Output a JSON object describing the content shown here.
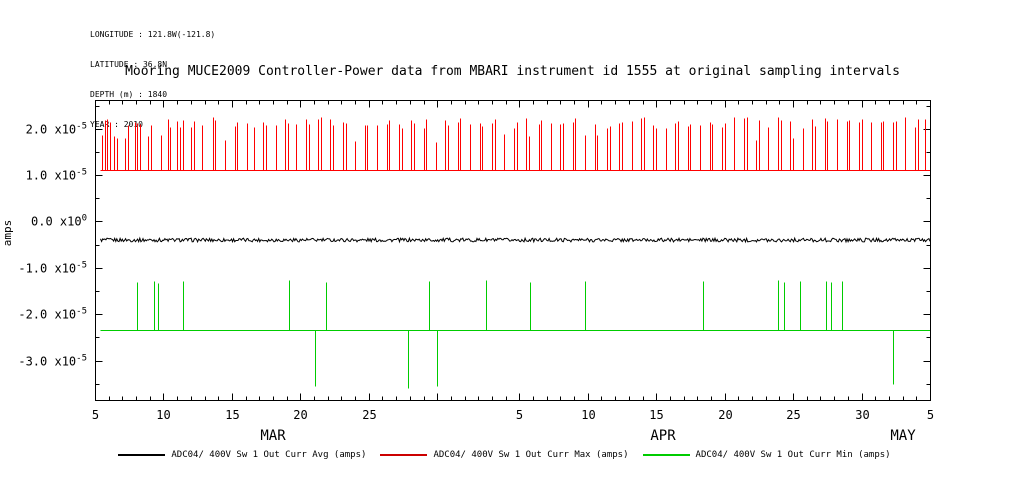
{
  "header": {
    "lines": [
      "LONGITUDE : 121.8W(-121.8)",
      "LATITUDE : 36.8N",
      "DEPTH (m) : 1840",
      "YEAR : 2010"
    ]
  },
  "chart_data": {
    "type": "line",
    "title": "Mooring MUCE2009 Controller-Power data from MBARI instrument id 1555 at original sampling intervals",
    "ylabel": "amps",
    "x_axis": {
      "range_days": [
        0,
        61
      ],
      "start_date": "MAR 5",
      "end_date": "MAY 5",
      "minor_tick_interval": 1,
      "ticks": [
        {
          "day": 0,
          "label": "5"
        },
        {
          "day": 5,
          "label": "10"
        },
        {
          "day": 10,
          "label": "15"
        },
        {
          "day": 15,
          "label": "20"
        },
        {
          "day": 20,
          "label": "25"
        },
        {
          "day": 25,
          "label": ""
        },
        {
          "day": 31,
          "label": "5"
        },
        {
          "day": 36,
          "label": "10"
        },
        {
          "day": 41,
          "label": "15"
        },
        {
          "day": 46,
          "label": "20"
        },
        {
          "day": 51,
          "label": "25"
        },
        {
          "day": 56,
          "label": "30"
        },
        {
          "day": 61,
          "label": "5"
        }
      ],
      "month_labels": [
        {
          "day": 13,
          "label": "MAR"
        },
        {
          "day": 41.5,
          "label": "APR"
        },
        {
          "day": 59,
          "label": "MAY"
        }
      ]
    },
    "y_axis": {
      "lim": [
        -3.85e-05,
        2.62e-05
      ],
      "minor_tick_interval": 5e-06,
      "ticks": [
        {
          "value": 2e-05,
          "base": "2.0 x10",
          "exp": "-5"
        },
        {
          "value": 1e-05,
          "base": "1.0 x10",
          "exp": "-5"
        },
        {
          "value": 0,
          "base": "0.0 x10",
          "exp": "0"
        },
        {
          "value": -1e-05,
          "base": "-1.0 x10",
          "exp": "-5"
        },
        {
          "value": -2e-05,
          "base": "-2.0 x10",
          "exp": "-5"
        },
        {
          "value": -3e-05,
          "base": "-3.0 x10",
          "exp": "-5"
        }
      ]
    },
    "series": [
      {
        "name": "ADC04/ 400V Sw 1 Out Curr Avg (amps)",
        "color": "#000000",
        "style": "noisy-constant",
        "value": -4e-06,
        "noise": 4e-07,
        "x_start": 0.4,
        "x_end": 61
      },
      {
        "name": "ADC04/ 400V Sw 1 Out Curr Max (amps)",
        "color": "#ff0000",
        "style": "baseline-spikes",
        "baseline": 1.1e-05,
        "spike_top_main": [
          2e-05,
          2.25e-05
        ],
        "spike_top_short": [
          1.7e-05,
          1.9e-05
        ],
        "short_fraction": 0.08,
        "x_start": 0.4,
        "x_end": 61,
        "spikes_x": [
          0.5,
          0.7,
          0.9,
          1.1,
          1.4,
          1.6,
          2.2,
          2.4,
          2.9,
          3.1,
          3.3,
          3.9,
          4.1,
          4.8,
          5.3,
          5.5,
          6.0,
          6.2,
          6.4,
          7.0,
          7.2,
          7.8,
          8.6,
          8.8,
          9.5,
          10.2,
          10.4,
          11.1,
          11.6,
          12.3,
          12.5,
          13.2,
          13.9,
          14.1,
          14.7,
          15.4,
          15.6,
          16.3,
          16.5,
          17.2,
          17.4,
          18.1,
          18.3,
          19.0,
          19.7,
          19.9,
          20.6,
          21.3,
          21.5,
          22.2,
          22.4,
          23.1,
          23.3,
          24.0,
          24.2,
          24.9,
          25.6,
          25.8,
          26.5,
          26.7,
          27.4,
          28.1,
          28.3,
          29.0,
          29.2,
          29.9,
          30.6,
          30.8,
          31.5,
          31.7,
          32.4,
          32.6,
          33.3,
          34.0,
          34.2,
          34.9,
          35.1,
          35.8,
          36.5,
          36.7,
          37.4,
          37.6,
          38.3,
          38.5,
          39.2,
          39.9,
          40.1,
          40.8,
          41.0,
          41.7,
          42.4,
          42.6,
          43.3,
          43.5,
          44.2,
          44.9,
          45.1,
          45.8,
          46.0,
          46.7,
          47.4,
          47.6,
          48.3,
          48.5,
          49.2,
          49.9,
          50.1,
          50.8,
          51.0,
          51.7,
          52.4,
          52.6,
          53.3,
          53.5,
          54.2,
          54.9,
          55.1,
          55.8,
          56.0,
          56.7,
          57.4,
          57.6,
          58.3,
          58.5,
          59.2,
          59.9,
          60.1,
          60.6
        ]
      },
      {
        "name": "ADC04/ 400V Sw 1 Out Curr Min (amps)",
        "color": "#00cc00",
        "style": "baseline-spikes",
        "baseline": -2.35e-05,
        "x_start": 0.4,
        "x_end": 61,
        "up_spikes": [
          {
            "x": 3.1,
            "y": -1.3e-05
          },
          {
            "x": 4.3,
            "y": -1.28e-05
          },
          {
            "x": 4.6,
            "y": -1.32e-05
          },
          {
            "x": 6.4,
            "y": -1.28e-05
          },
          {
            "x": 14.2,
            "y": -1.27e-05
          },
          {
            "x": 16.9,
            "y": -1.3e-05
          },
          {
            "x": 24.4,
            "y": -1.28e-05
          },
          {
            "x": 28.6,
            "y": -1.27e-05
          },
          {
            "x": 31.8,
            "y": -1.3e-05
          },
          {
            "x": 35.8,
            "y": -1.28e-05
          },
          {
            "x": 44.4,
            "y": -1.29e-05
          },
          {
            "x": 49.9,
            "y": -1.27e-05
          },
          {
            "x": 50.3,
            "y": -1.3e-05
          },
          {
            "x": 51.5,
            "y": -1.28e-05
          },
          {
            "x": 53.4,
            "y": -1.29e-05
          },
          {
            "x": 53.8,
            "y": -1.31e-05
          },
          {
            "x": 54.6,
            "y": -1.28e-05
          }
        ],
        "down_spikes": [
          {
            "x": 16.1,
            "y": -3.55e-05
          },
          {
            "x": 22.9,
            "y": -3.6e-05
          },
          {
            "x": 25.0,
            "y": -3.55e-05
          },
          {
            "x": 58.3,
            "y": -3.5e-05
          }
        ]
      }
    ]
  },
  "legend": {
    "items": [
      {
        "label": "ADC04/ 400V Sw 1 Out Curr Avg (amps)",
        "color": "#000000"
      },
      {
        "label": "ADC04/ 400V Sw 1 Out Curr Max (amps)",
        "color": "#cc0000"
      },
      {
        "label": "ADC04/ 400V Sw 1 Out Curr Min (amps)",
        "color": "#00cc00"
      }
    ]
  }
}
